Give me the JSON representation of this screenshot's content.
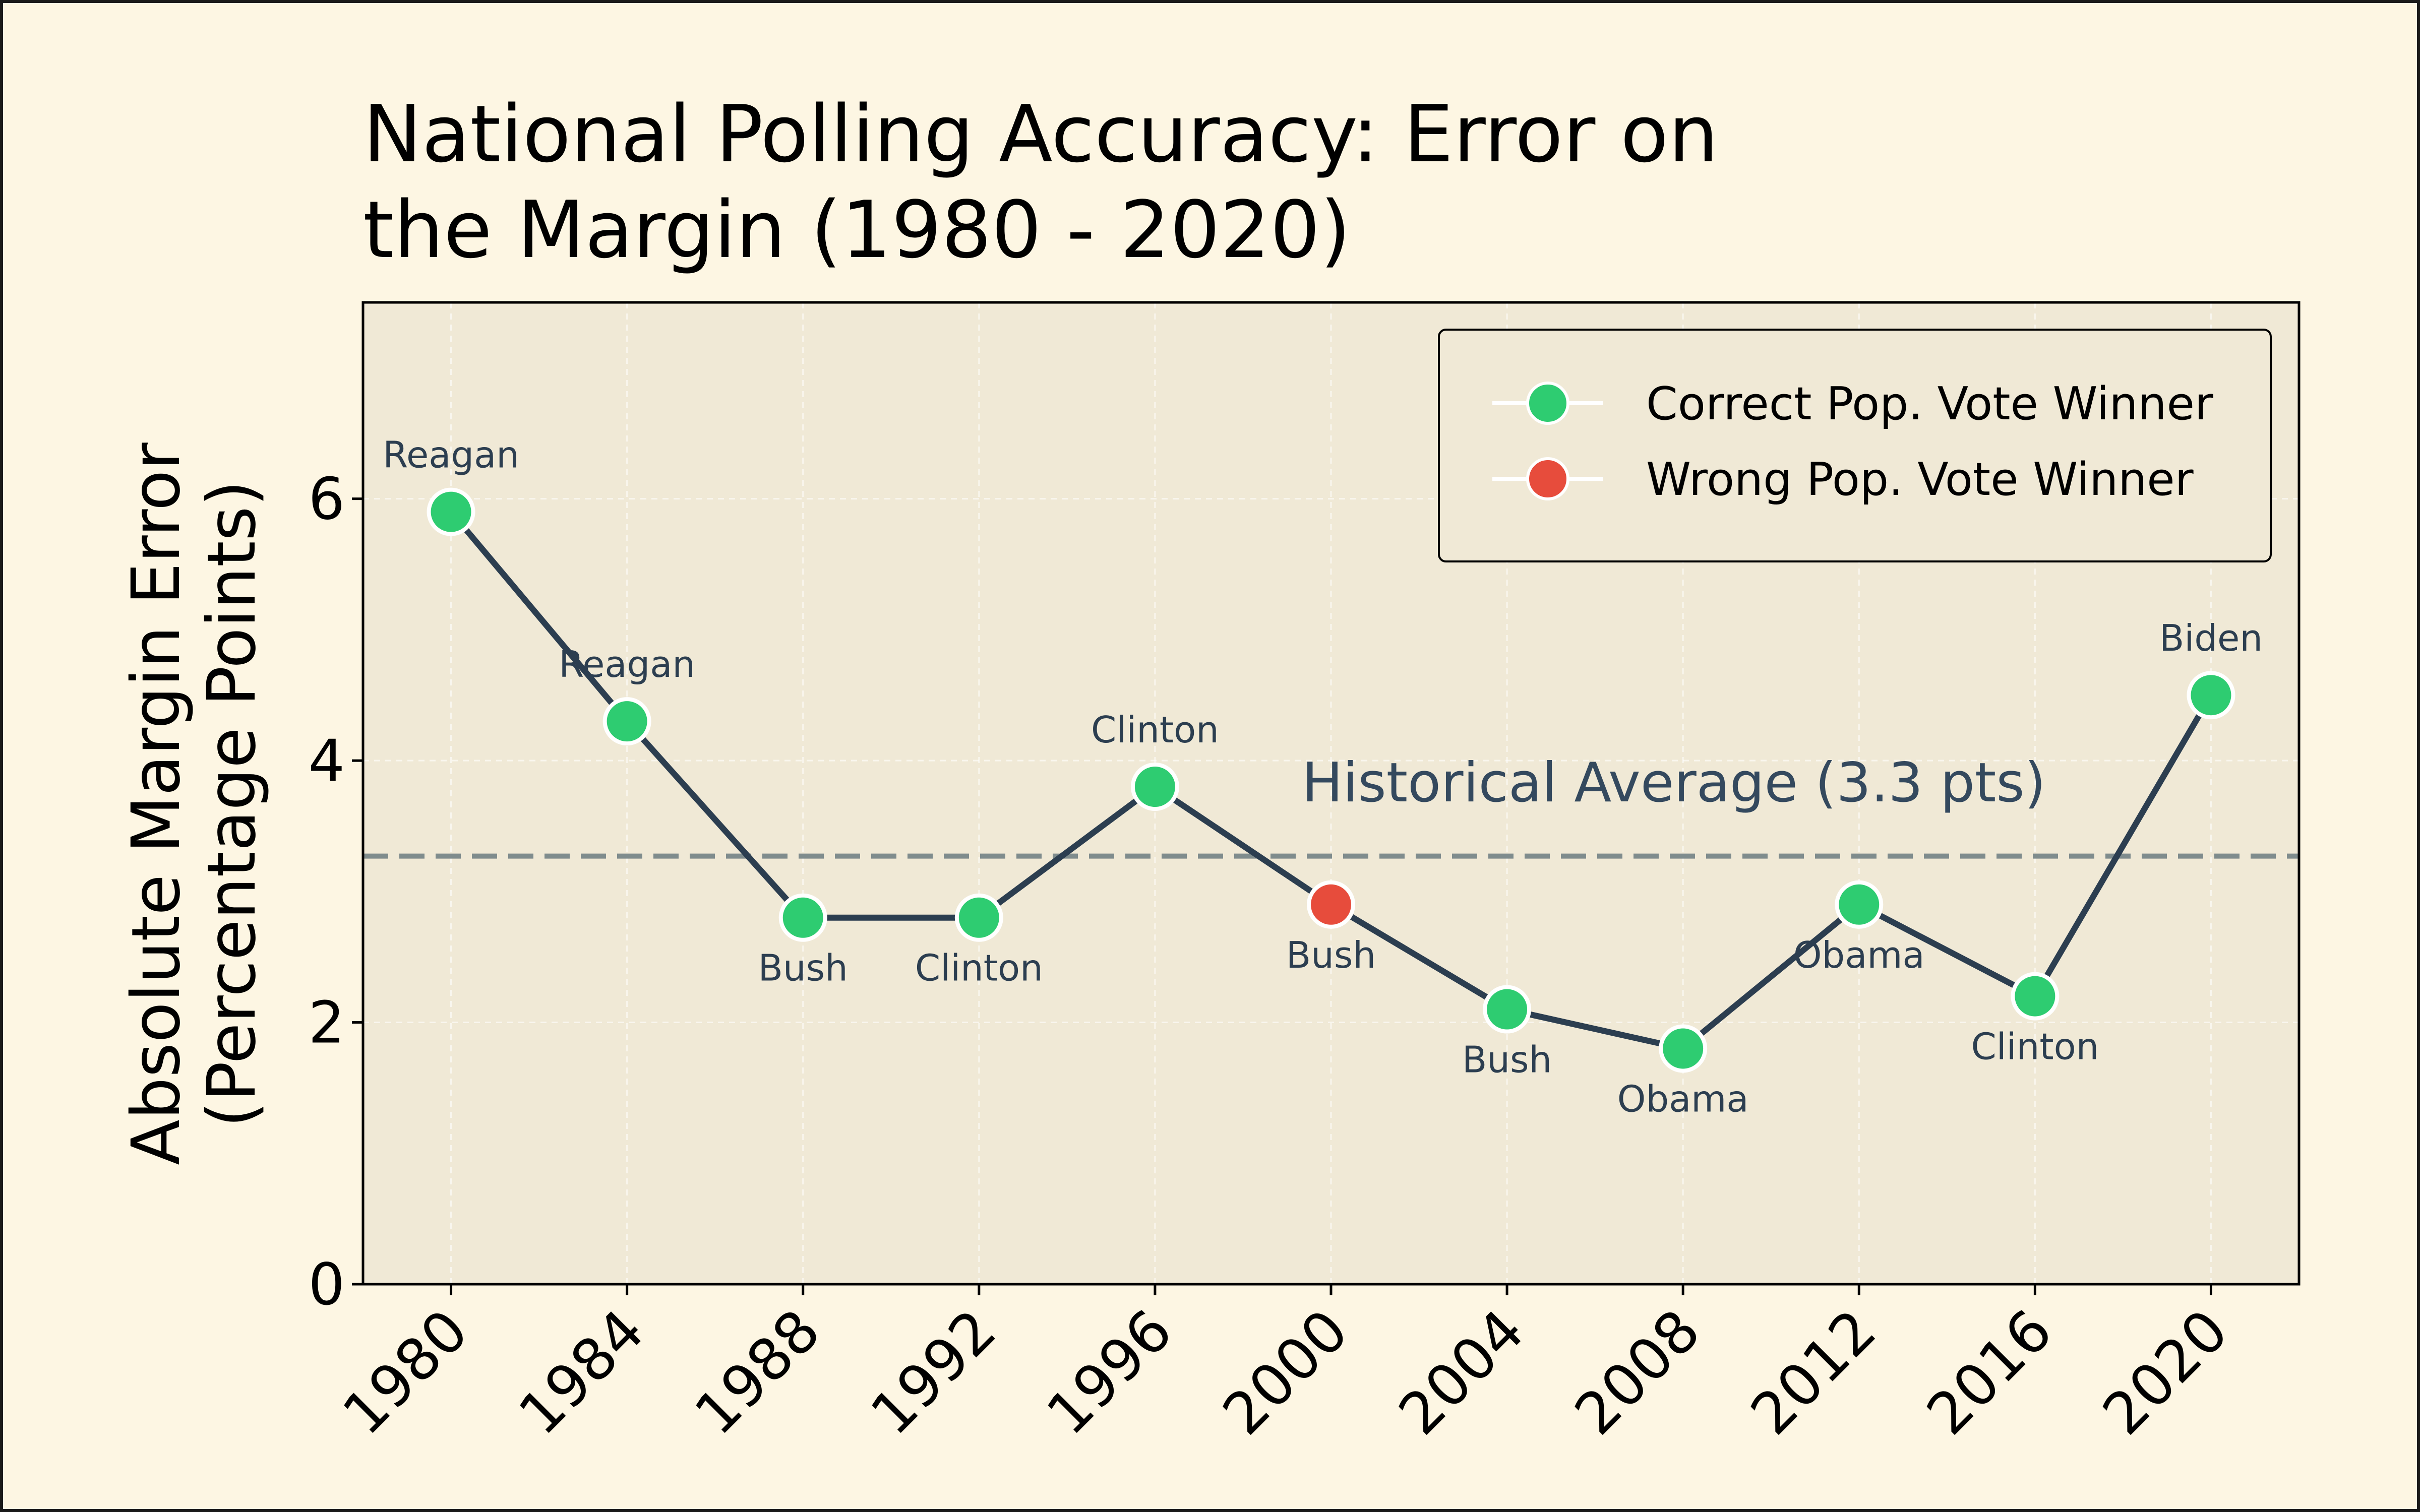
{
  "chart_data": {
    "type": "line",
    "title_lines": [
      "National Polling Accuracy: Error on",
      "the Margin (1980 - 2020)"
    ],
    "xlabel": "",
    "ylabel_lines": [
      "Absolute Margin Error",
      "(Percentage Points)"
    ],
    "x": [
      1980,
      1984,
      1988,
      1992,
      1996,
      2000,
      2004,
      2008,
      2012,
      2016,
      2020
    ],
    "x_tick_labels": [
      "1980",
      "1984",
      "1988",
      "1992",
      "1996",
      "2000",
      "2004",
      "2008",
      "2012",
      "2016",
      "2020"
    ],
    "y": [
      5.9,
      4.3,
      2.8,
      2.8,
      3.8,
      2.9,
      2.1,
      1.8,
      2.9,
      2.2,
      4.5
    ],
    "point_labels": [
      "Reagan",
      "Reagan",
      "Bush",
      "Clinton",
      "Clinton",
      "Bush",
      "Bush",
      "Obama",
      "Obama",
      "Clinton",
      "Biden"
    ],
    "label_position": [
      "above",
      "above",
      "below",
      "below",
      "above",
      "below",
      "below",
      "below",
      "below",
      "below",
      "above"
    ],
    "correct_winner": [
      true,
      true,
      true,
      true,
      true,
      false,
      true,
      true,
      true,
      true,
      true
    ],
    "ylim": [
      0,
      7.5
    ],
    "xlim": [
      1978,
      2022
    ],
    "y_ticks": [
      0,
      2,
      4,
      6
    ],
    "average": 3.27,
    "average_label": "Historical Average (3.3 pts)",
    "legend": [
      {
        "label": "Correct Pop. Vote Winner",
        "color": "#2ecc71"
      },
      {
        "label": "Wrong Pop. Vote Winner",
        "color": "#e74c3c"
      }
    ],
    "legend_position": "top-right",
    "grid": true,
    "colors": {
      "line": "#2c3e50",
      "correct": "#2ecc71",
      "wrong": "#e74c3c",
      "average_line": "#7f8c8d",
      "plot_bg": "#f0e9d6",
      "figure_bg": "#fdf6e3"
    }
  }
}
